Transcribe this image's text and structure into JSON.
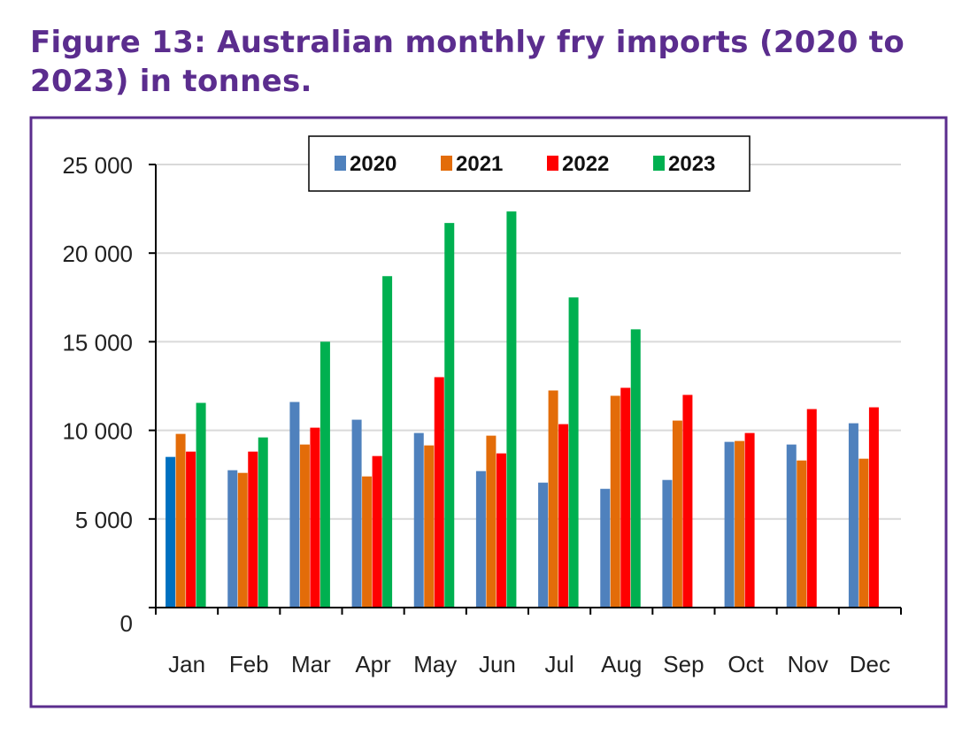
{
  "figure_title": "Figure 13: Australian monthly fry imports (2020 to 2023) in tonnes.",
  "colors": {
    "frame": "#5b2d8e",
    "title": "#5b2d8e",
    "grid": "#d9d9d9"
  },
  "chart_data": {
    "type": "bar",
    "title": "Figure 13: Australian monthly fry imports (2020 to 2023) in tonnes.",
    "xlabel": "",
    "ylabel": "",
    "ylim": [
      0,
      25000
    ],
    "yticks": [
      0,
      5000,
      10000,
      15000,
      20000,
      25000
    ],
    "ytick_labels": [
      "0",
      "5 000",
      "10 000",
      "15 000",
      "20 000",
      "25 000"
    ],
    "grid": true,
    "legend_position": "top-center",
    "categories": [
      "Jan",
      "Feb",
      "Mar",
      "Apr",
      "May",
      "Jun",
      "Jul",
      "Aug",
      "Sep",
      "Oct",
      "Nov",
      "Dec"
    ],
    "series": [
      {
        "name": "2020",
        "color": "#4f81bd",
        "values": [
          8500,
          7750,
          11600,
          10600,
          9850,
          7700,
          7050,
          6700,
          7200,
          9350,
          9200,
          10400
        ]
      },
      {
        "name": "2021",
        "color": "#e36c09",
        "values": [
          9800,
          7600,
          9200,
          7400,
          9150,
          9700,
          12250,
          11950,
          10550,
          9400,
          8300,
          8400
        ]
      },
      {
        "name": "2022",
        "color": "#ff0000",
        "values": [
          8800,
          8800,
          10150,
          8550,
          13000,
          8700,
          10350,
          12400,
          12000,
          9850,
          11200,
          11300
        ]
      },
      {
        "name": "2023",
        "color": "#00b050",
        "values": [
          11550,
          9600,
          15000,
          18700,
          21700,
          22350,
          17500,
          15700,
          null,
          null,
          null,
          null
        ]
      }
    ]
  }
}
